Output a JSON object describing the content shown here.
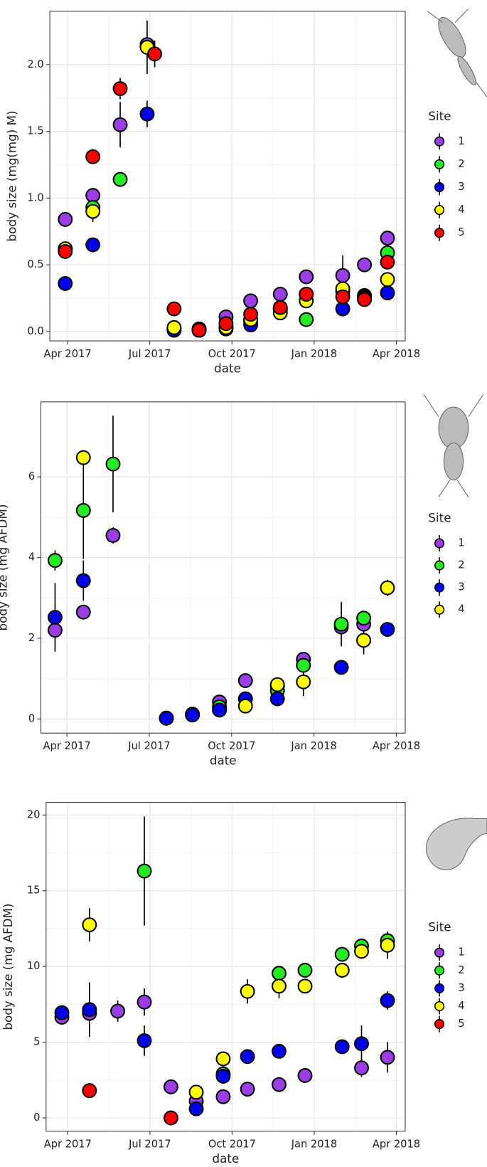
{
  "chart_data": [
    {
      "type": "scatter",
      "x_label": "date",
      "y_label": "body size (mg(mg) M)",
      "legend_title": "Site",
      "grid": true,
      "xlim": [
        2017.196,
        2018.277
      ],
      "ylim": [
        -0.07,
        2.4
      ],
      "xticks": [
        {
          "value": 2017.25,
          "label": "Apr 2017"
        },
        {
          "value": 2017.5,
          "label": "Jul 2017"
        },
        {
          "value": 2017.75,
          "label": "Oct 2017"
        },
        {
          "value": 2018.0,
          "label": "Jan 2018"
        },
        {
          "value": 2018.25,
          "label": "Apr 2018"
        }
      ],
      "yticks": [
        {
          "value": 0,
          "label": "0.0"
        },
        {
          "value": 0.5,
          "label": "0.5"
        },
        {
          "value": 1,
          "label": "1.0"
        },
        {
          "value": 1.5,
          "label": "1.5"
        },
        {
          "value": 2,
          "label": "2.0"
        }
      ],
      "x": [
        2017.243,
        2017.327,
        2017.41,
        2017.492,
        2017.515,
        2017.574,
        2017.65,
        2017.732,
        2017.807,
        2017.897,
        2017.976,
        2018.087,
        2018.153,
        2018.223
      ],
      "series": [
        {
          "name": "1",
          "color": "#9b3ee8",
          "values": [
            0.84,
            1.02,
            1.55,
            2.15,
            null,
            0.02,
            0.02,
            0.11,
            0.23,
            0.28,
            0.41,
            0.42,
            0.5,
            0.7
          ],
          "errors": [
            null,
            null,
            0.17,
            null,
            null,
            null,
            null,
            null,
            null,
            null,
            null,
            0.15,
            null,
            null
          ]
        },
        {
          "name": "2",
          "color": "#22ee22",
          "values": [
            0.62,
            0.93,
            1.14,
            null,
            null,
            0.02,
            0.01,
            0.03,
            0.08,
            0.17,
            0.09,
            0.3,
            0.27,
            0.59
          ],
          "errors": [
            null,
            null,
            null,
            null,
            null,
            null,
            null,
            null,
            null,
            null,
            null,
            null,
            null,
            null
          ]
        },
        {
          "name": "3",
          "color": "#0000ee",
          "values": [
            0.36,
            0.65,
            null,
            1.63,
            null,
            0.01,
            0.01,
            0.02,
            0.05,
            0.17,
            0.28,
            0.17,
            0.26,
            0.29
          ],
          "errors": [
            null,
            null,
            null,
            0.1,
            null,
            null,
            null,
            null,
            null,
            null,
            null,
            null,
            null,
            null
          ]
        },
        {
          "name": "4",
          "color": "#ffff00",
          "values": [
            0.62,
            0.9,
            null,
            2.13,
            null,
            0.03,
            0.01,
            0.03,
            0.09,
            0.14,
            0.23,
            0.32,
            0.25,
            0.39
          ],
          "errors": [
            null,
            0.08,
            null,
            0.2,
            null,
            null,
            null,
            null,
            null,
            null,
            null,
            null,
            null,
            null
          ]
        },
        {
          "name": "5",
          "color": "#ff0000",
          "values": [
            0.6,
            1.31,
            1.82,
            null,
            2.08,
            0.17,
            0.01,
            0.06,
            0.13,
            0.18,
            0.28,
            0.26,
            0.24,
            0.52
          ],
          "errors": [
            null,
            null,
            0.08,
            null,
            0.1,
            null,
            null,
            null,
            null,
            null,
            null,
            null,
            null,
            null
          ]
        }
      ]
    },
    {
      "type": "scatter",
      "x_label": "date",
      "y_label": "body size (mg AFDM)",
      "legend_title": "Site",
      "grid": true,
      "xlim": [
        2017.171,
        2018.277
      ],
      "ylim": [
        -0.35,
        7.86
      ],
      "xticks": [
        {
          "value": 2017.25,
          "label": "Apr 2017"
        },
        {
          "value": 2017.5,
          "label": "Jul 2017"
        },
        {
          "value": 2017.75,
          "label": "Oct 2017"
        },
        {
          "value": 2018.0,
          "label": "Jan 2018"
        },
        {
          "value": 2018.25,
          "label": "Apr 2018"
        }
      ],
      "yticks": [
        0,
        2,
        4,
        6
      ],
      "x": [
        2017.214,
        2017.3,
        2017.39,
        2017.552,
        2017.631,
        2017.713,
        2017.792,
        2017.889,
        2017.968,
        2018.083,
        2018.151,
        2018.223
      ],
      "series": [
        {
          "name": "1",
          "color": "#9b3ee8",
          "values": [
            2.2,
            2.65,
            4.55,
            null,
            0.12,
            0.42,
            0.95,
            0.82,
            1.48,
            2.28,
            2.35,
            null
          ],
          "errors": [
            null,
            null,
            0.2,
            null,
            null,
            null,
            null,
            null,
            null,
            null,
            null,
            null
          ]
        },
        {
          "name": "2",
          "color": "#22ee22",
          "values": [
            3.93,
            5.17,
            6.32,
            0.02,
            0.1,
            0.3,
            0.5,
            0.7,
            1.33,
            2.35,
            2.5,
            null
          ],
          "errors": [
            0.25,
            1.2,
            1.2,
            null,
            null,
            null,
            null,
            null,
            null,
            0.55,
            null,
            null
          ]
        },
        {
          "name": "3",
          "color": "#0000ee",
          "values": [
            2.52,
            3.43,
            null,
            0.02,
            0.1,
            0.22,
            0.5,
            0.5,
            null,
            1.28,
            null,
            2.22
          ],
          "errors": [
            0.85,
            0.5,
            null,
            null,
            null,
            null,
            null,
            null,
            null,
            null,
            null,
            null
          ]
        },
        {
          "name": "4",
          "color": "#ffff00",
          "values": [
            null,
            6.48,
            null,
            null,
            null,
            null,
            0.32,
            0.85,
            0.92,
            null,
            1.95,
            3.25
          ],
          "errors": [
            null,
            null,
            null,
            null,
            null,
            null,
            null,
            null,
            0.35,
            null,
            0.35,
            0.2
          ]
        }
      ]
    },
    {
      "type": "scatter",
      "x_label": "date",
      "y_label": "body size (mg AFDM)",
      "legend_title": "Site",
      "grid": true,
      "xlim": [
        2017.184,
        2018.277
      ],
      "ylim": [
        -0.88,
        20.84
      ],
      "xticks": [
        {
          "value": 2017.25,
          "label": "Apr 2017"
        },
        {
          "value": 2017.5,
          "label": "Jul 2017"
        },
        {
          "value": 2017.75,
          "label": "Oct 2017"
        },
        {
          "value": 2018.0,
          "label": "Jan 2018"
        },
        {
          "value": 2018.25,
          "label": "Apr 2018"
        }
      ],
      "yticks": [
        0,
        5,
        10,
        15,
        20
      ],
      "x": [
        2017.232,
        2017.316,
        2017.402,
        2017.483,
        2017.564,
        2017.641,
        2017.723,
        2017.797,
        2017.893,
        2017.972,
        2018.085,
        2018.144,
        2018.223
      ],
      "series": [
        {
          "name": "1",
          "color": "#9b3ee8",
          "values": [
            6.65,
            6.9,
            7.05,
            7.65,
            2.05,
            1.1,
            1.4,
            1.9,
            2.2,
            2.8,
            null,
            3.3,
            4.0
          ],
          "errors": [
            null,
            null,
            0.7,
            0.9,
            null,
            null,
            null,
            null,
            null,
            null,
            null,
            0.6,
            1.0
          ]
        },
        {
          "name": "2",
          "color": "#22ee22",
          "values": [
            null,
            null,
            null,
            16.3,
            null,
            null,
            2.9,
            null,
            9.55,
            9.75,
            10.8,
            11.35,
            11.7
          ],
          "errors": [
            null,
            null,
            null,
            3.6,
            null,
            null,
            null,
            null,
            null,
            null,
            null,
            null,
            null
          ]
        },
        {
          "name": "3",
          "color": "#0000ee",
          "values": [
            6.95,
            7.15,
            null,
            5.1,
            null,
            0.6,
            2.75,
            4.05,
            4.4,
            null,
            4.7,
            4.9,
            7.75
          ],
          "errors": [
            null,
            1.8,
            null,
            1.0,
            null,
            null,
            null,
            null,
            null,
            null,
            null,
            1.2,
            0.6
          ]
        },
        {
          "name": "4",
          "color": "#ffff00",
          "values": [
            null,
            12.75,
            null,
            null,
            null,
            1.7,
            3.9,
            8.35,
            8.7,
            8.7,
            9.75,
            11.0,
            11.4
          ],
          "errors": [
            null,
            1.1,
            null,
            null,
            null,
            null,
            null,
            0.8,
            0.8,
            null,
            null,
            null,
            0.9
          ]
        },
        {
          "name": "5",
          "color": "#ff0000",
          "values": [
            null,
            1.8,
            null,
            null,
            0.0,
            null,
            null,
            null,
            null,
            null,
            null,
            null,
            null
          ],
          "errors": [
            null,
            0.5,
            null,
            null,
            null,
            null,
            null,
            null,
            null,
            null,
            null,
            null,
            null
          ]
        }
      ]
    }
  ]
}
